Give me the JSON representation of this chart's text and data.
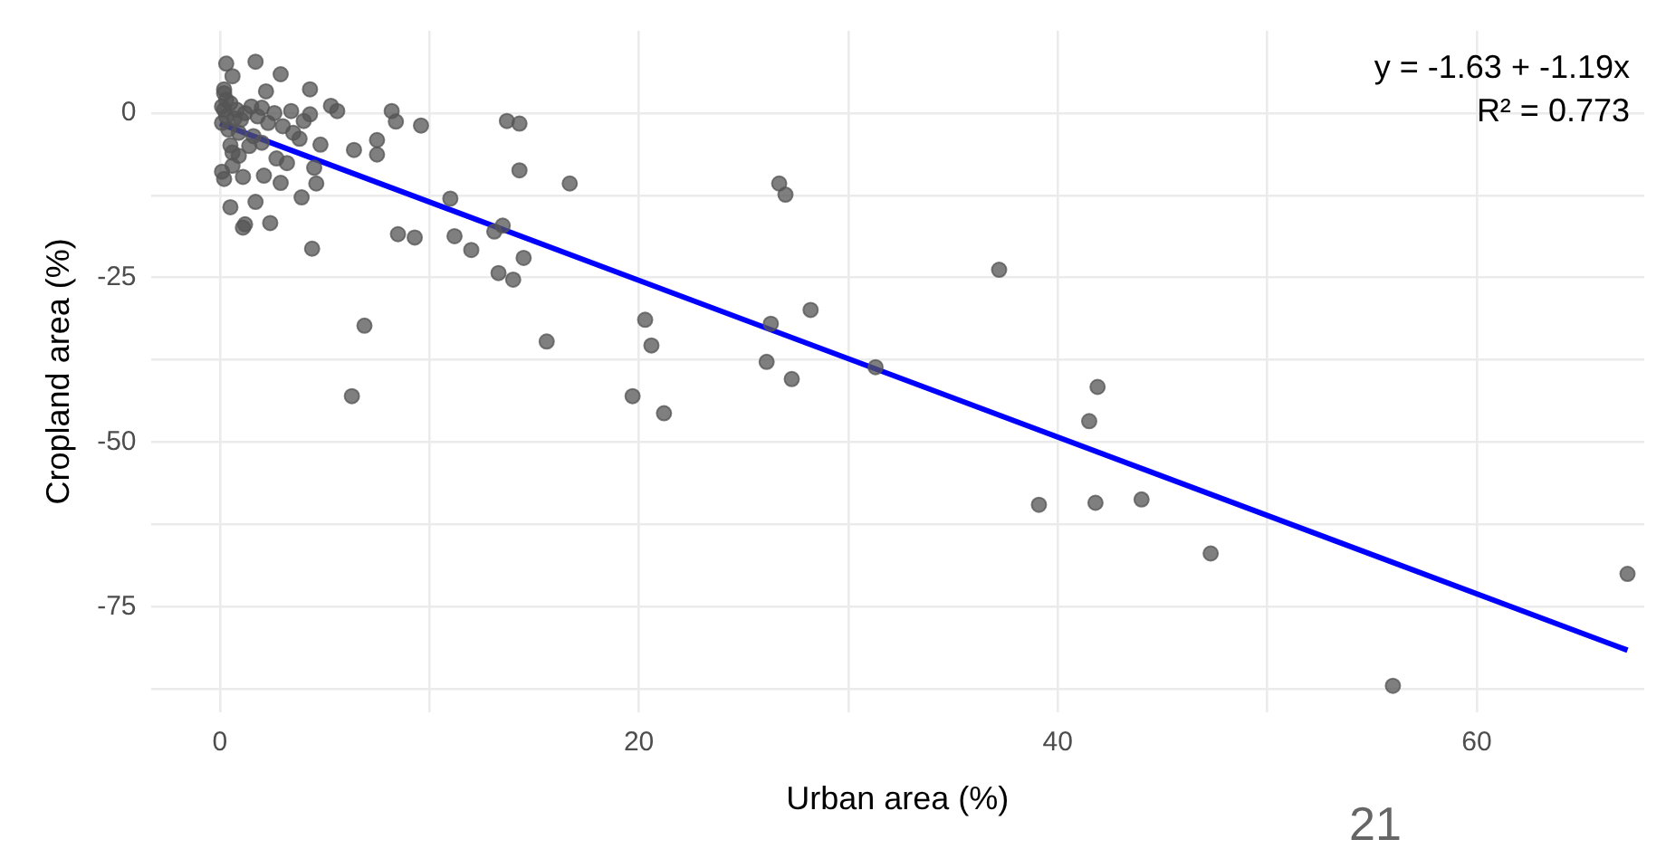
{
  "chart_data": {
    "type": "scatter",
    "xlabel": "Urban area (%)",
    "ylabel": "Cropland area (%)",
    "annotations": [
      "y = -1.63 + -1.19x",
      "R² = 0.773",
      "21"
    ],
    "xlim": [
      -3.3,
      68
    ],
    "ylim": [
      -91,
      12.5
    ],
    "xticks": [
      0,
      {
        "value": 10,
        "label": null
      },
      20,
      {
        "value": 30,
        "label": null
      },
      40,
      {
        "value": 50,
        "label": null
      },
      60
    ],
    "yticks": [
      {
        "value": -87.5,
        "label": null
      },
      -75,
      {
        "value": -62.5,
        "label": null
      },
      -50,
      {
        "value": -37.5,
        "label": null
      },
      -25,
      {
        "value": -12.5,
        "label": null
      },
      0
    ],
    "grid": true,
    "legend": false,
    "marker": "circle",
    "series": [
      {
        "type": "scatter",
        "color": "#555555",
        "x": [
          0.3,
          1.7,
          2.9,
          0.6,
          0.2,
          2.2,
          4.3,
          5.3,
          5.6,
          4.3,
          3.4,
          8.2,
          8.4,
          9.6,
          13.7,
          14.3,
          14.3,
          6.4,
          7.5,
          7.5,
          4.8,
          3.8,
          4.5,
          4.6,
          3.2,
          2.7,
          2.9,
          2.1,
          0.9,
          0.1,
          0.2,
          1.1,
          0.5,
          0.6,
          3.9,
          1.7,
          0.5,
          2.4,
          1.2,
          1.1,
          4.4,
          8.5,
          9.3,
          11,
          11.2,
          12,
          13.1,
          13.5,
          14.5,
          16.7,
          13.3,
          14,
          6.9,
          15.6,
          6.3,
          20.3,
          20.6,
          19.7,
          21.2,
          26.7,
          27,
          26.3,
          28.2,
          26.1,
          27.3,
          31.3,
          37.2,
          39.1,
          41.8,
          41.9,
          41.5,
          44,
          47.3,
          56,
          67.2,
          0.1,
          0.2,
          0.3,
          0.5,
          0.8,
          1,
          1.2,
          1.5,
          1.8,
          2,
          2.3,
          2.6,
          3,
          0.4,
          0.9,
          1.6,
          0.1,
          0.2,
          0.6,
          1.4,
          2,
          3.5,
          4,
          0.3,
          0.7
        ],
        "values": [
          7.5,
          7.8,
          5.9,
          5.6,
          3.6,
          3.3,
          3.6,
          1.1,
          0.3,
          -0.2,
          0.3,
          0.3,
          -1.3,
          -1.9,
          -1.2,
          -1.6,
          -8.7,
          -5.6,
          -4.1,
          -6.3,
          -4.8,
          -3.9,
          -8.3,
          -10.7,
          -7.6,
          -6.9,
          -10.6,
          -9.5,
          -6.5,
          -8.9,
          -10,
          -9.7,
          -4.9,
          -8,
          -12.8,
          -13.5,
          -14.3,
          -16.7,
          -16.9,
          -17.4,
          -20.6,
          -18.4,
          -18.9,
          -13,
          -18.7,
          -20.8,
          -18,
          -17.1,
          -22,
          -10.7,
          -24.3,
          -25.3,
          -32.3,
          -34.7,
          -43,
          -31.4,
          -35.3,
          -43,
          -45.6,
          -10.7,
          -12.4,
          -32,
          -29.9,
          -37.8,
          -40.4,
          -38.6,
          -23.8,
          -59.5,
          -59.2,
          -41.6,
          -46.8,
          -58.7,
          -66.9,
          -87,
          -70,
          1,
          0.5,
          -0.5,
          1.5,
          0.5,
          -1,
          0,
          1,
          -0.5,
          0.8,
          -1.5,
          0,
          -2,
          -2.5,
          -3,
          -3.5,
          -1.5,
          3,
          -6,
          -5,
          -4.5,
          -3,
          -1.2,
          2,
          -0.8
        ]
      },
      {
        "type": "line",
        "color": "#0000ff",
        "marker": "none",
        "x": [
          0,
          67.2
        ],
        "values": [
          -1.6,
          -81.6
        ]
      }
    ]
  }
}
